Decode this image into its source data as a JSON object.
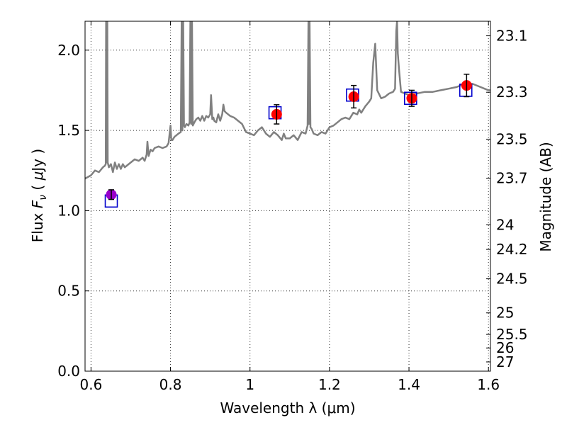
{
  "chart_data": {
    "type": "scatter",
    "title": "",
    "xlabel": "Wavelength  λ (μm)",
    "ylabel": "Flux  F_ν  ( μJy )",
    "ylabel_parts": [
      "Flux  ",
      "F",
      "ν",
      "  ( ",
      "μ",
      "Jy )"
    ],
    "y2label": "Magnitude (AB)",
    "xlim": [
      0.585,
      1.605
    ],
    "ylim": [
      0.0,
      2.18
    ],
    "grid": true,
    "x_ticks": [
      {
        "value": 0.6,
        "label": "0.6"
      },
      {
        "value": 0.8,
        "label": "0.8"
      },
      {
        "value": 1.0,
        "label": "1"
      },
      {
        "value": 1.2,
        "label": "1.2"
      },
      {
        "value": 1.4,
        "label": "1.4"
      },
      {
        "value": 1.6,
        "label": "1.6"
      }
    ],
    "y_ticks": [
      {
        "value": 0.0,
        "label": "0.0"
      },
      {
        "value": 0.5,
        "label": "0.5"
      },
      {
        "value": 1.0,
        "label": "1.0"
      },
      {
        "value": 1.5,
        "label": "1.5"
      },
      {
        "value": 2.0,
        "label": "2.0"
      }
    ],
    "y2_ticks": [
      {
        "value": 23.1,
        "label": "23.1"
      },
      {
        "value": 23.3,
        "label": "23.3"
      },
      {
        "value": 23.5,
        "label": "23.5"
      },
      {
        "value": 23.7,
        "label": "23.7"
      },
      {
        "value": 24,
        "label": "24"
      },
      {
        "value": 24.2,
        "label": "24.2"
      },
      {
        "value": 24.5,
        "label": "24.5"
      },
      {
        "value": 25,
        "label": "25"
      },
      {
        "value": 25.5,
        "label": "25.5"
      },
      {
        "value": 26,
        "label": "26"
      },
      {
        "value": 27,
        "label": "27"
      }
    ],
    "series": [
      {
        "kind": "line",
        "color": "#808080",
        "x": [
          0.585,
          0.6,
          0.61,
          0.62,
          0.63,
          0.635,
          0.637,
          0.638,
          0.639,
          0.64,
          0.641,
          0.642,
          0.645,
          0.65,
          0.655,
          0.66,
          0.665,
          0.67,
          0.675,
          0.68,
          0.685,
          0.69,
          0.7,
          0.71,
          0.72,
          0.73,
          0.735,
          0.74,
          0.742,
          0.745,
          0.75,
          0.755,
          0.76,
          0.77,
          0.78,
          0.79,
          0.795,
          0.8,
          0.802,
          0.805,
          0.81,
          0.82,
          0.826,
          0.828,
          0.83,
          0.832,
          0.834,
          0.836,
          0.84,
          0.845,
          0.848,
          0.85,
          0.852,
          0.854,
          0.856,
          0.86,
          0.865,
          0.87,
          0.875,
          0.88,
          0.885,
          0.89,
          0.895,
          0.9,
          0.902,
          0.905,
          0.908,
          0.91,
          0.915,
          0.92,
          0.925,
          0.93,
          0.933,
          0.936,
          0.94,
          0.95,
          0.96,
          0.97,
          0.98,
          0.99,
          1.0,
          1.01,
          1.02,
          1.03,
          1.04,
          1.05,
          1.06,
          1.07,
          1.08,
          1.085,
          1.09,
          1.1,
          1.11,
          1.12,
          1.13,
          1.14,
          1.145,
          1.147,
          1.148,
          1.15,
          1.152,
          1.155,
          1.16,
          1.17,
          1.18,
          1.19,
          1.2,
          1.21,
          1.22,
          1.23,
          1.24,
          1.25,
          1.26,
          1.27,
          1.275,
          1.28,
          1.29,
          1.3,
          1.305,
          1.31,
          1.315,
          1.32,
          1.33,
          1.34,
          1.35,
          1.36,
          1.365,
          1.368,
          1.37,
          1.372,
          1.375,
          1.38,
          1.39,
          1.4,
          1.42,
          1.44,
          1.46,
          1.48,
          1.5,
          1.52,
          1.54,
          1.56,
          1.58,
          1.59,
          1.6,
          1.605
        ],
        "y": [
          1.2,
          1.22,
          1.25,
          1.24,
          1.27,
          1.28,
          1.29,
          2.18,
          1.3,
          1.31,
          2.18,
          1.3,
          1.27,
          1.29,
          1.24,
          1.3,
          1.26,
          1.29,
          1.26,
          1.29,
          1.27,
          1.28,
          1.3,
          1.32,
          1.31,
          1.33,
          1.31,
          1.35,
          1.43,
          1.34,
          1.38,
          1.37,
          1.39,
          1.4,
          1.39,
          1.4,
          1.42,
          1.53,
          1.44,
          1.44,
          1.46,
          1.48,
          1.49,
          2.18,
          1.5,
          2.18,
          1.53,
          1.52,
          1.54,
          1.53,
          1.55,
          2.18,
          1.54,
          2.18,
          1.53,
          1.55,
          1.57,
          1.58,
          1.56,
          1.59,
          1.56,
          1.59,
          1.58,
          1.6,
          1.72,
          1.57,
          1.58,
          1.56,
          1.55,
          1.6,
          1.56,
          1.6,
          1.66,
          1.62,
          1.61,
          1.59,
          1.58,
          1.56,
          1.54,
          1.49,
          1.48,
          1.47,
          1.5,
          1.52,
          1.48,
          1.46,
          1.49,
          1.47,
          1.44,
          1.48,
          1.45,
          1.45,
          1.47,
          1.44,
          1.49,
          1.48,
          1.53,
          2.18,
          1.54,
          2.18,
          1.52,
          1.51,
          1.48,
          1.47,
          1.49,
          1.48,
          1.52,
          1.53,
          1.55,
          1.57,
          1.58,
          1.57,
          1.61,
          1.6,
          1.63,
          1.61,
          1.65,
          1.68,
          1.7,
          1.92,
          2.04,
          1.75,
          1.7,
          1.71,
          1.73,
          1.74,
          1.76,
          2.12,
          2.18,
          1.98,
          1.88,
          1.74,
          1.73,
          1.72,
          1.73,
          1.74,
          1.74,
          1.75,
          1.76,
          1.77,
          1.79,
          1.79,
          1.77,
          1.76,
          1.75,
          1.75
        ]
      },
      {
        "kind": "open-square",
        "color": "#0000cc",
        "x": [
          0.651,
          1.063,
          1.258,
          1.404,
          1.543
        ],
        "y": [
          1.06,
          1.61,
          1.72,
          1.7,
          1.75
        ]
      },
      {
        "kind": "filled-circle",
        "color": "#ff0000",
        "highlight": "#9900cc",
        "x": [
          0.651,
          1.067,
          1.261,
          1.407,
          1.545
        ],
        "y": [
          1.1,
          1.6,
          1.71,
          1.7,
          1.78
        ],
        "yerr": [
          0.03,
          0.06,
          0.07,
          0.05,
          0.07
        ]
      }
    ]
  }
}
